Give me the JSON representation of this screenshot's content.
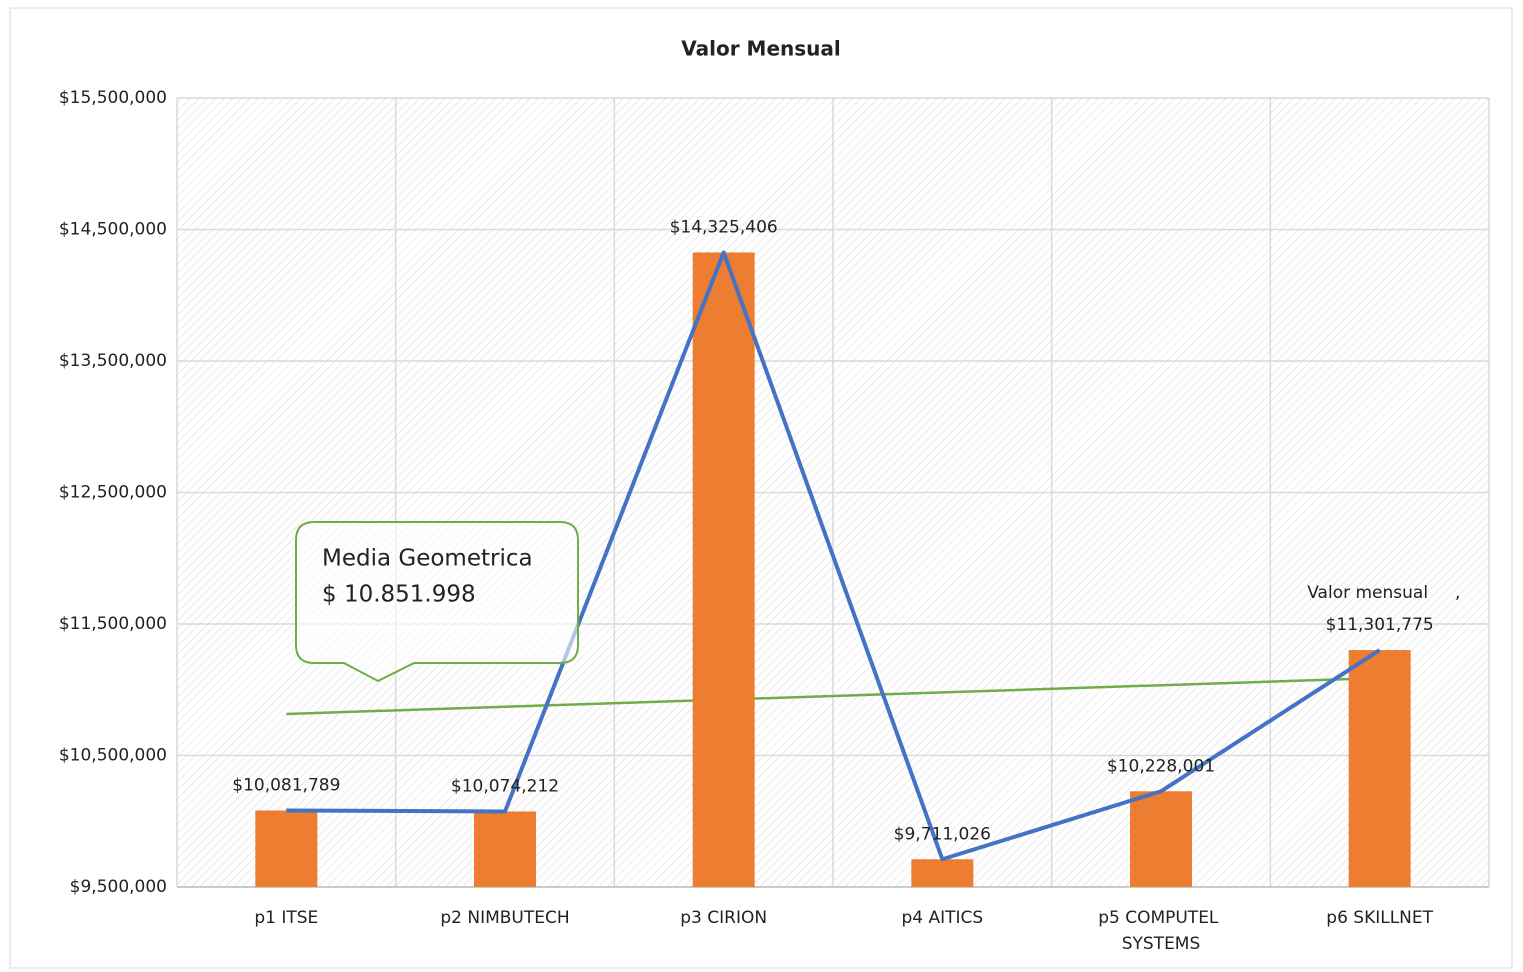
{
  "chart_data": {
    "type": "bar",
    "title": "Valor Mensual",
    "categories": [
      "p1 ITSE",
      "p2 NIMBUTECH",
      "p3 CIRION",
      "p4 AITICS",
      "p5 COMPUTEL SYSTEMS",
      "p6 SKILLNET"
    ],
    "series": [
      {
        "name": "Valor mensual",
        "type": "bar",
        "color": "#ed7d31",
        "values": [
          10081789,
          10074212,
          14325406,
          9711026,
          10228001,
          11301775
        ]
      },
      {
        "name": "Valor mensual",
        "type": "line",
        "color": "#4472c4",
        "values": [
          10081789,
          10074212,
          14325406,
          9711026,
          10228001,
          11301775
        ],
        "value_labels": [
          "$10,081,789",
          "$10,074,212",
          "$14,325,406",
          "$9,711,026",
          "$10,228,001",
          "$11,301,775"
        ]
      }
    ],
    "label_separator": ",",
    "trendline": {
      "color": "#70ad47",
      "start": 10816000,
      "end": 11089000
    },
    "annotation": {
      "lines": [
        "Media Geometrica",
        "$ 10.851.998"
      ],
      "color": "#70ad47"
    },
    "ylim": [
      9500000,
      15500000
    ],
    "yticks": [
      {
        "value": 9500000,
        "label": "$9,500,000"
      },
      {
        "value": 10500000,
        "label": "$10,500,000"
      },
      {
        "value": 11500000,
        "label": "$11,500,000"
      },
      {
        "value": 12500000,
        "label": "$12,500,000"
      },
      {
        "value": 13500000,
        "label": "$13,500,000"
      },
      {
        "value": 14500000,
        "label": "$14,500,000"
      },
      {
        "value": 15500000,
        "label": "$15,500,000"
      }
    ],
    "grid": true
  }
}
